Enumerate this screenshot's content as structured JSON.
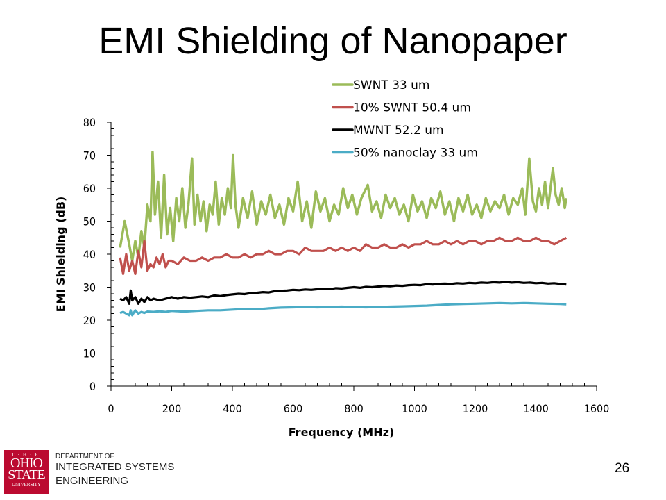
{
  "slide": {
    "title": "EMI Shielding of Nanopaper",
    "page_number": "26",
    "footer": {
      "logo": {
        "the": "T·H·E",
        "line1": "OHIO",
        "line2": "STATE",
        "line3": "UNIVERSITY"
      },
      "dept_line1": "DEPARTMENT OF",
      "dept_line2": "INTEGRATED SYSTEMS",
      "dept_line3": "ENGINEERING"
    }
  },
  "chart_data": {
    "type": "line",
    "title": "EMI Shielding of Nanopaper",
    "xlabel": "Frequency (MHz)",
    "ylabel": "EMI Shielding (dB)",
    "xlim": [
      0,
      1600
    ],
    "ylim": [
      0,
      80
    ],
    "xticks": [
      "0",
      "200",
      "400",
      "600",
      "800",
      "1000",
      "1200",
      "1400",
      "1600"
    ],
    "yticks": [
      "0",
      "10",
      "20",
      "30",
      "40",
      "50",
      "60",
      "70",
      "80"
    ],
    "grid": false,
    "legend_position": "top-right",
    "series": [
      {
        "name": "SWNT 33 um",
        "color": "#9bbb59",
        "x": [
          30,
          45,
          60,
          70,
          80,
          90,
          100,
          110,
          120,
          130,
          137,
          145,
          155,
          165,
          175,
          185,
          195,
          205,
          215,
          225,
          235,
          245,
          255,
          267,
          275,
          285,
          295,
          305,
          315,
          325,
          335,
          345,
          355,
          365,
          375,
          385,
          395,
          402,
          410,
          420,
          435,
          450,
          465,
          480,
          495,
          510,
          525,
          540,
          555,
          570,
          585,
          600,
          615,
          630,
          645,
          660,
          675,
          690,
          705,
          720,
          735,
          750,
          765,
          780,
          795,
          810,
          825,
          846,
          860,
          875,
          890,
          905,
          920,
          935,
          950,
          965,
          980,
          995,
          1010,
          1025,
          1040,
          1055,
          1070,
          1085,
          1100,
          1115,
          1130,
          1145,
          1160,
          1175,
          1190,
          1205,
          1220,
          1235,
          1250,
          1265,
          1280,
          1295,
          1310,
          1325,
          1340,
          1355,
          1365,
          1378,
          1390,
          1400,
          1410,
          1420,
          1430,
          1440,
          1456,
          1465,
          1475,
          1485,
          1495,
          1500
        ],
        "y": [
          42,
          50,
          43,
          38,
          44,
          39,
          47,
          42,
          55,
          50,
          71,
          52,
          62,
          45,
          64,
          46,
          54,
          44,
          57,
          50,
          60,
          48,
          55,
          69,
          49,
          58,
          50,
          56,
          47,
          55,
          52,
          62,
          49,
          57,
          52,
          60,
          54,
          70,
          55,
          48,
          57,
          51,
          59,
          49,
          56,
          52,
          58,
          51,
          55,
          49,
          57,
          53,
          62,
          50,
          56,
          48,
          59,
          53,
          57,
          50,
          55,
          52,
          60,
          54,
          58,
          52,
          57,
          61,
          53,
          56,
          51,
          58,
          54,
          57,
          52,
          55,
          50,
          58,
          53,
          56,
          51,
          57,
          54,
          59,
          52,
          56,
          50,
          57,
          53,
          58,
          52,
          55,
          51,
          57,
          53,
          56,
          54,
          58,
          52,
          57,
          55,
          60,
          52,
          69,
          56,
          53,
          60,
          55,
          62,
          54,
          66,
          58,
          55,
          60,
          54,
          57
        ]
      },
      {
        "name": "10% SWNT  50.4 um",
        "color": "#c0504d",
        "x": [
          30,
          40,
          50,
          60,
          70,
          80,
          90,
          100,
          110,
          120,
          130,
          140,
          150,
          160,
          170,
          180,
          190,
          200,
          220,
          240,
          260,
          280,
          300,
          320,
          340,
          360,
          380,
          400,
          420,
          440,
          460,
          480,
          500,
          520,
          540,
          560,
          580,
          600,
          620,
          640,
          660,
          680,
          700,
          720,
          740,
          760,
          780,
          800,
          820,
          840,
          860,
          880,
          900,
          920,
          940,
          960,
          980,
          1000,
          1020,
          1040,
          1060,
          1080,
          1100,
          1120,
          1140,
          1160,
          1180,
          1200,
          1220,
          1240,
          1260,
          1280,
          1300,
          1320,
          1340,
          1360,
          1380,
          1400,
          1420,
          1440,
          1460,
          1480,
          1500
        ],
        "y": [
          39,
          34,
          40,
          35,
          38,
          34,
          41,
          36,
          44,
          35,
          37,
          36,
          39,
          37,
          40,
          36,
          38,
          38,
          37,
          39,
          38,
          38,
          39,
          38,
          39,
          39,
          40,
          39,
          39,
          40,
          39,
          40,
          40,
          41,
          40,
          40,
          41,
          41,
          40,
          42,
          41,
          41,
          41,
          42,
          41,
          42,
          41,
          42,
          41,
          43,
          42,
          42,
          43,
          42,
          42,
          43,
          42,
          43,
          43,
          44,
          43,
          43,
          44,
          43,
          44,
          43,
          44,
          44,
          43,
          44,
          44,
          45,
          44,
          44,
          45,
          44,
          44,
          45,
          44,
          44,
          43,
          44,
          45
        ]
      },
      {
        "name": "MWNT  52.2 um",
        "color": "#000000",
        "x": [
          30,
          40,
          50,
          60,
          65,
          70,
          80,
          90,
          100,
          110,
          120,
          130,
          140,
          160,
          180,
          200,
          220,
          240,
          260,
          280,
          300,
          320,
          340,
          360,
          380,
          400,
          420,
          440,
          460,
          480,
          500,
          520,
          540,
          560,
          580,
          600,
          620,
          640,
          660,
          680,
          700,
          720,
          740,
          760,
          780,
          800,
          820,
          840,
          860,
          880,
          900,
          920,
          940,
          960,
          980,
          1000,
          1020,
          1040,
          1060,
          1080,
          1100,
          1120,
          1140,
          1160,
          1180,
          1200,
          1220,
          1240,
          1260,
          1280,
          1300,
          1320,
          1340,
          1360,
          1380,
          1400,
          1420,
          1440,
          1460,
          1480,
          1500
        ],
        "y": [
          26.5,
          26,
          27,
          25,
          29,
          26,
          27,
          25,
          26.5,
          25.5,
          27,
          26,
          26.5,
          26,
          26.5,
          27,
          26.5,
          27,
          26.8,
          27,
          27.2,
          27,
          27.5,
          27.3,
          27.6,
          27.8,
          28,
          27.9,
          28.2,
          28.3,
          28.5,
          28.4,
          28.8,
          28.9,
          29,
          29.2,
          29.1,
          29.3,
          29.2,
          29.4,
          29.5,
          29.4,
          29.7,
          29.6,
          29.8,
          30,
          29.8,
          30.1,
          30,
          30.2,
          30.4,
          30.3,
          30.5,
          30.4,
          30.6,
          30.7,
          30.6,
          30.9,
          30.8,
          31,
          31.1,
          31,
          31.2,
          31.1,
          31.3,
          31.2,
          31.4,
          31.3,
          31.5,
          31.4,
          31.6,
          31.4,
          31.5,
          31.3,
          31.4,
          31.2,
          31.3,
          31.1,
          31.2,
          31.0,
          30.8
        ]
      },
      {
        "name": "50% nanoclay  33 um",
        "color": "#4bacc6",
        "x": [
          30,
          40,
          50,
          60,
          65,
          70,
          80,
          90,
          100,
          110,
          120,
          140,
          160,
          180,
          200,
          240,
          280,
          320,
          360,
          400,
          440,
          480,
          520,
          560,
          600,
          640,
          680,
          720,
          760,
          800,
          840,
          880,
          920,
          960,
          1000,
          1040,
          1080,
          1120,
          1160,
          1200,
          1240,
          1280,
          1320,
          1360,
          1400,
          1440,
          1480,
          1500
        ],
        "y": [
          22.2,
          22.5,
          22,
          21.5,
          23,
          21.5,
          23,
          22,
          22.5,
          22.2,
          22.6,
          22.5,
          22.7,
          22.5,
          22.8,
          22.6,
          22.8,
          23,
          23,
          23.2,
          23.4,
          23.3,
          23.6,
          23.8,
          23.9,
          24,
          23.9,
          24,
          24.1,
          24,
          23.9,
          24,
          24.1,
          24.2,
          24.3,
          24.4,
          24.6,
          24.8,
          24.9,
          25,
          25.1,
          25.2,
          25.1,
          25.2,
          25.1,
          25,
          24.9,
          24.8
        ]
      }
    ]
  }
}
